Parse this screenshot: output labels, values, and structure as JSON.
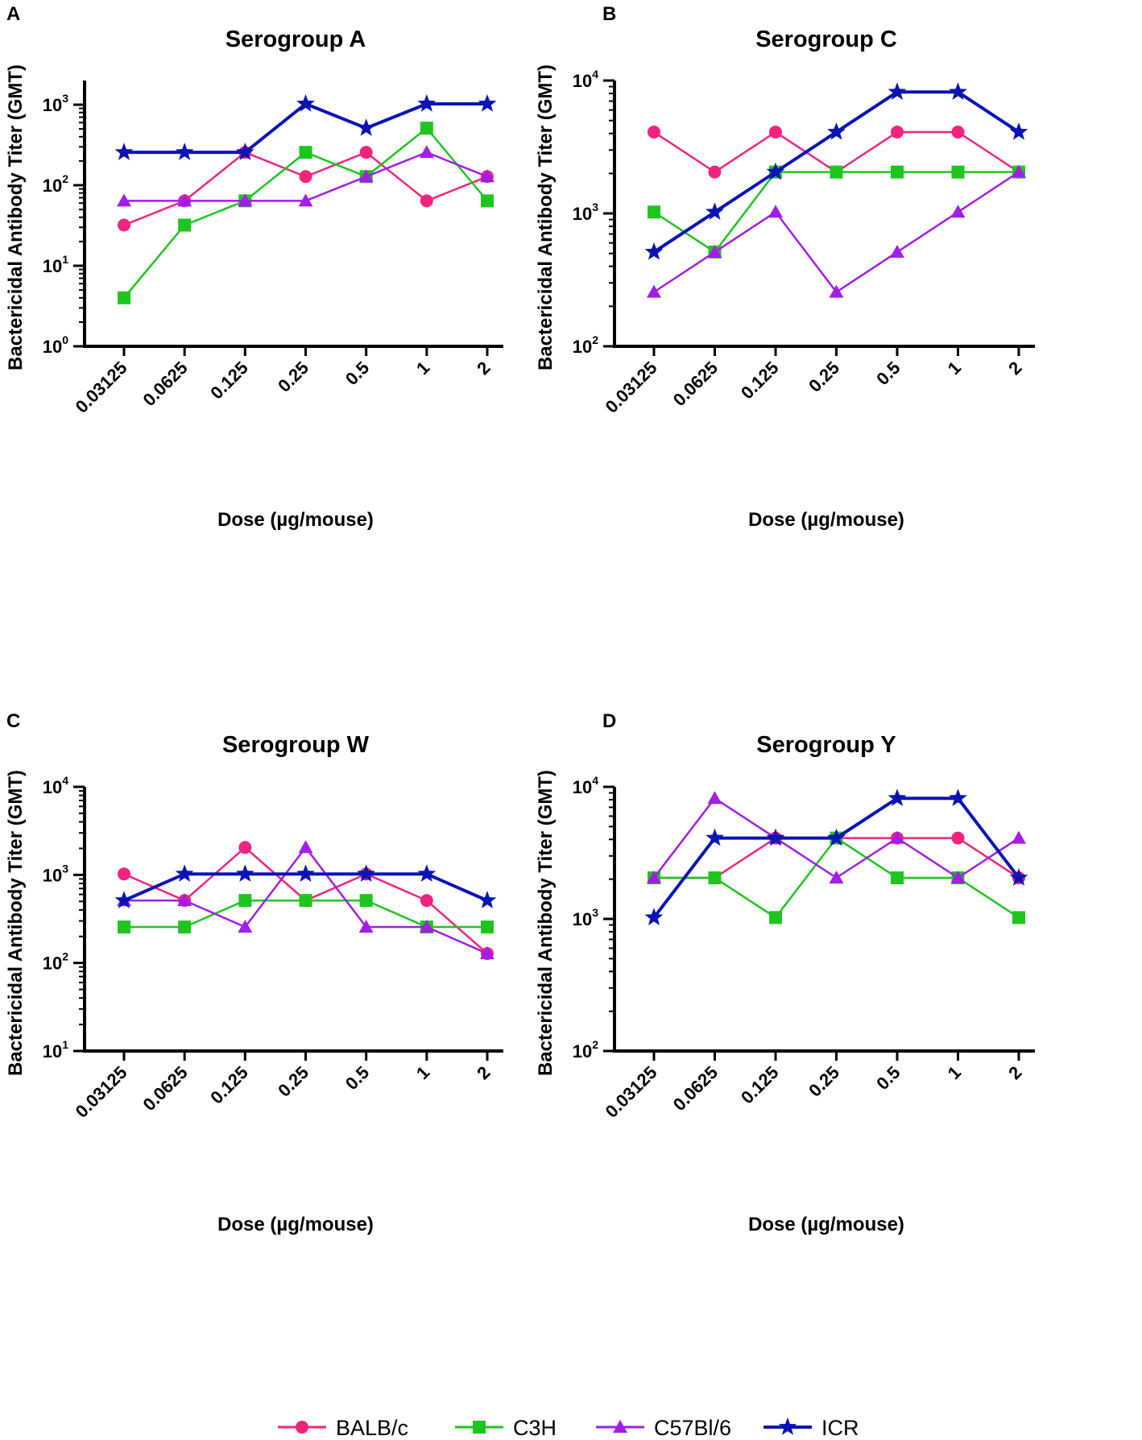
{
  "series_styles": [
    {
      "name": "BALB/c",
      "color": "#f0247e",
      "marker": "circle",
      "stroke_weight": "normal"
    },
    {
      "name": "C3H",
      "color": "#1ec51e",
      "marker": "square",
      "stroke_weight": "normal"
    },
    {
      "name": "C57Bl/6",
      "color": "#a21ee6",
      "marker": "triangle",
      "stroke_weight": "normal"
    },
    {
      "name": "ICR",
      "color": "#0a14b4",
      "marker": "star",
      "stroke_weight": "bold"
    }
  ],
  "legend": {
    "items": [
      "BALB/c",
      "C3H",
      "C57Bl/6",
      "ICR"
    ],
    "position": "bottom-center"
  },
  "chart_data": [
    {
      "panel": "A",
      "type": "line",
      "title": "Serogroup A",
      "xlabel": "Dose (µg/mouse)",
      "ylabel": "Bactericidal Antibody Titer (GMT)",
      "yscale": "log10",
      "ylim_exp": [
        0,
        3.3
      ],
      "y_ticks": [
        {
          "base": "10",
          "exp": "0"
        },
        {
          "base": "10",
          "exp": "1"
        },
        {
          "base": "10",
          "exp": "2"
        },
        {
          "base": "10",
          "exp": "3"
        }
      ],
      "categories": [
        "0.03125",
        "0.0625",
        "0.125",
        "0.25",
        "0.5",
        "1",
        "2"
      ],
      "series": [
        {
          "name": "BALB/c",
          "values": [
            32,
            64,
            256,
            128,
            256,
            64,
            128
          ]
        },
        {
          "name": "C3H",
          "values": [
            4,
            32,
            64,
            256,
            128,
            512,
            64
          ]
        },
        {
          "name": "C57Bl/6",
          "values": [
            64,
            64,
            64,
            64,
            128,
            256,
            128
          ]
        },
        {
          "name": "ICR",
          "values": [
            256,
            256,
            256,
            1024,
            512,
            1024,
            1024
          ]
        }
      ]
    },
    {
      "panel": "B",
      "type": "line",
      "title": "Serogroup C",
      "xlabel": "Dose (µg/mouse)",
      "ylabel": "Bactericidal Antibody Titer (GMT)",
      "yscale": "log10",
      "ylim_exp": [
        2,
        4
      ],
      "y_ticks": [
        {
          "base": "10",
          "exp": "2"
        },
        {
          "base": "10",
          "exp": "3"
        },
        {
          "base": "10",
          "exp": "4"
        }
      ],
      "categories": [
        "0.03125",
        "0.0625",
        "0.125",
        "0.25",
        "0.5",
        "1",
        "2"
      ],
      "series": [
        {
          "name": "BALB/c",
          "values": [
            4096,
            2048,
            4096,
            2048,
            4096,
            4096,
            2048
          ]
        },
        {
          "name": "C3H",
          "values": [
            1024,
            512,
            2048,
            2048,
            2048,
            2048,
            2048
          ]
        },
        {
          "name": "C57Bl/6",
          "values": [
            256,
            512,
            1024,
            256,
            512,
            1024,
            2048
          ]
        },
        {
          "name": "ICR",
          "values": [
            512,
            1024,
            2048,
            4096,
            8192,
            8192,
            4096
          ]
        }
      ]
    },
    {
      "panel": "C",
      "type": "line",
      "title": "Serogroup W",
      "xlabel": "Dose (µg/mouse)",
      "ylabel": "Bactericidal Antibody Titer (GMT)",
      "yscale": "log10",
      "ylim_exp": [
        1,
        4
      ],
      "y_ticks": [
        {
          "base": "10",
          "exp": "1"
        },
        {
          "base": "10",
          "exp": "2"
        },
        {
          "base": "10",
          "exp": "3"
        },
        {
          "base": "10",
          "exp": "4"
        }
      ],
      "categories": [
        "0.03125",
        "0.0625",
        "0.125",
        "0.25",
        "0.5",
        "1",
        "2"
      ],
      "series": [
        {
          "name": "BALB/c",
          "values": [
            1024,
            512,
            2048,
            512,
            1024,
            512,
            128
          ]
        },
        {
          "name": "C3H",
          "values": [
            256,
            256,
            512,
            512,
            512,
            256,
            256
          ]
        },
        {
          "name": "C57Bl/6",
          "values": [
            512,
            512,
            256,
            2048,
            256,
            256,
            128
          ]
        },
        {
          "name": "ICR",
          "values": [
            512,
            1024,
            1024,
            1024,
            1024,
            1024,
            512
          ]
        }
      ]
    },
    {
      "panel": "D",
      "type": "line",
      "title": "Serogroup Y",
      "xlabel": "Dose (µg/mouse)",
      "ylabel": "Bactericidal Antibody Titer (GMT)",
      "yscale": "log10",
      "ylim_exp": [
        2,
        4
      ],
      "y_ticks": [
        {
          "base": "10",
          "exp": "2"
        },
        {
          "base": "10",
          "exp": "3"
        },
        {
          "base": "10",
          "exp": "4"
        }
      ],
      "categories": [
        "0.03125",
        "0.0625",
        "0.125",
        "0.25",
        "0.5",
        "1",
        "2"
      ],
      "series": [
        {
          "name": "BALB/c",
          "values": [
            2048,
            2048,
            4096,
            4096,
            4096,
            4096,
            2048
          ]
        },
        {
          "name": "C3H",
          "values": [
            2048,
            2048,
            1024,
            4096,
            2048,
            2048,
            1024
          ]
        },
        {
          "name": "C57Bl/6",
          "values": [
            2048,
            8192,
            4096,
            2048,
            4096,
            2048,
            4096
          ]
        },
        {
          "name": "ICR",
          "values": [
            1024,
            4096,
            4096,
            4096,
            8192,
            8192,
            2048
          ]
        }
      ]
    }
  ]
}
